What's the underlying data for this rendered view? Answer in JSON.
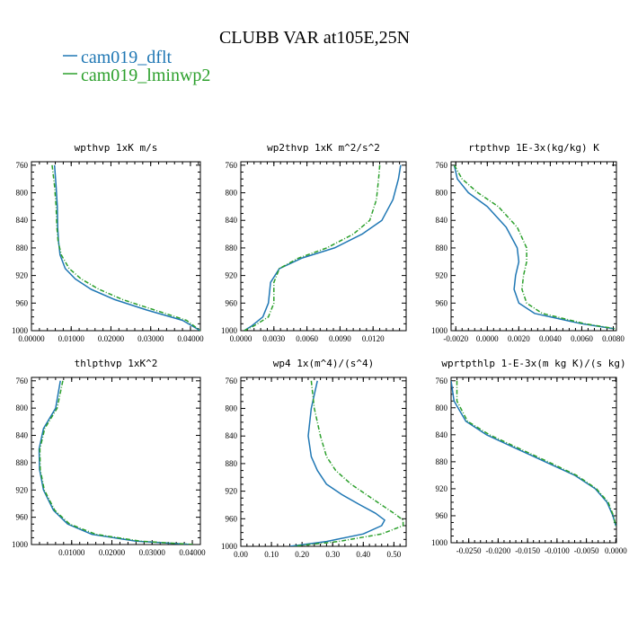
{
  "title": "CLUBB VAR at105E,25N",
  "legend": [
    {
      "label": "cam019_dflt",
      "color": "#1f77b4"
    },
    {
      "label": "cam019_lminwp2",
      "color": "#2ca02c"
    }
  ],
  "chart_data": [
    {
      "type": "line",
      "title": "wpthvp  1xK m/s",
      "ylabel": "",
      "xlabel": "",
      "y_axis_reversed": true,
      "ylim": [
        1000,
        755
      ],
      "xlim": [
        0,
        0.0425
      ],
      "yticks": [
        760,
        800,
        840,
        880,
        920,
        960,
        1000
      ],
      "xticks": [
        0,
        0.01,
        0.02,
        0.03,
        0.04
      ],
      "xtick_labels": [
        "0.00000",
        "0.01000",
        "0.02000",
        "0.03000",
        "0.04000"
      ],
      "series": [
        {
          "name": "cam019_dflt",
          "x": [
            0.0058,
            0.0062,
            0.0065,
            0.0066,
            0.0068,
            0.0072,
            0.0085,
            0.011,
            0.015,
            0.021,
            0.029,
            0.038,
            0.0425
          ],
          "y": [
            760,
            790,
            820,
            850,
            870,
            890,
            910,
            925,
            940,
            955,
            970,
            985,
            1000
          ]
        },
        {
          "name": "cam019_lminwp2",
          "x": [
            0.0052,
            0.0058,
            0.0062,
            0.0064,
            0.0067,
            0.0075,
            0.0095,
            0.0125,
            0.017,
            0.023,
            0.031,
            0.039,
            0.0425
          ],
          "y": [
            760,
            790,
            820,
            850,
            870,
            890,
            910,
            925,
            940,
            955,
            970,
            985,
            1000
          ]
        }
      ]
    },
    {
      "type": "line",
      "title": "wp2thvp  1xK m^2/s^2",
      "ylabel": "",
      "xlabel": "",
      "y_axis_reversed": true,
      "ylim": [
        1000,
        755
      ],
      "xlim": [
        0,
        0.015
      ],
      "yticks": [
        760,
        800,
        840,
        880,
        920,
        960,
        1000
      ],
      "xticks": [
        0,
        0.003,
        0.006,
        0.009,
        0.012
      ],
      "xtick_labels": [
        "0.0000",
        "0.0030",
        "0.0060",
        "0.0090",
        "0.0120"
      ],
      "series": [
        {
          "name": "cam019_dflt",
          "x": [
            0.0145,
            0.0143,
            0.0138,
            0.0128,
            0.011,
            0.0085,
            0.0055,
            0.0035,
            0.0027,
            0.0025,
            0.002,
            0.001,
            0.0003
          ],
          "y": [
            760,
            780,
            810,
            840,
            860,
            880,
            895,
            910,
            930,
            960,
            980,
            993,
            1000
          ]
        },
        {
          "name": "cam019_lminwp2",
          "x": [
            0.0126,
            0.0125,
            0.0123,
            0.0117,
            0.0102,
            0.0078,
            0.0052,
            0.0035,
            0.003,
            0.003,
            0.0025,
            0.0012,
            0.0003
          ],
          "y": [
            760,
            780,
            810,
            840,
            860,
            880,
            895,
            910,
            930,
            960,
            980,
            993,
            1000
          ]
        }
      ]
    },
    {
      "type": "line",
      "title": "rtpthvp  1E-3x(kg/kg) K",
      "ylabel": "",
      "xlabel": "",
      "y_axis_reversed": true,
      "ylim": [
        1000,
        755
      ],
      "xlim": [
        -0.0023,
        0.0082
      ],
      "yticks": [
        760,
        800,
        840,
        880,
        920,
        960,
        1000
      ],
      "xticks": [
        -0.002,
        0,
        0.002,
        0.004,
        0.006,
        0.008
      ],
      "xtick_labels": [
        "-0.0020",
        "0.0000",
        "0.0020",
        "0.0040",
        "0.0060",
        "0.0080"
      ],
      "series": [
        {
          "name": "cam019_dflt",
          "x": [
            -0.0021,
            -0.0019,
            -0.0012,
            0.0,
            0.0012,
            0.0019,
            0.002,
            0.0018,
            0.0017,
            0.002,
            0.003,
            0.006,
            0.008
          ],
          "y": [
            760,
            780,
            800,
            820,
            850,
            880,
            900,
            920,
            940,
            960,
            975,
            990,
            997
          ]
        },
        {
          "name": "cam019_lminwp2",
          "x": [
            -0.0021,
            -0.0016,
            -0.0006,
            0.0007,
            0.0019,
            0.0025,
            0.0025,
            0.0023,
            0.0022,
            0.0025,
            0.0035,
            0.0062,
            0.0081
          ],
          "y": [
            760,
            780,
            800,
            820,
            850,
            880,
            900,
            920,
            940,
            960,
            975,
            990,
            997
          ]
        }
      ]
    },
    {
      "type": "line",
      "title": "thlpthvp  1xK^2",
      "ylabel": "",
      "xlabel": "",
      "y_axis_reversed": true,
      "ylim": [
        1000,
        755
      ],
      "xlim": [
        0,
        0.042
      ],
      "yticks": [
        760,
        800,
        840,
        880,
        920,
        960,
        1000
      ],
      "xticks": [
        0.01,
        0.02,
        0.03,
        0.04
      ],
      "xtick_labels": [
        "0.01000",
        "0.02000",
        "0.03000",
        "0.04000"
      ],
      "series": [
        {
          "name": "cam019_dflt",
          "x": [
            0.0072,
            0.006,
            0.003,
            0.0019,
            0.002,
            0.003,
            0.0055,
            0.009,
            0.015,
            0.026,
            0.04
          ],
          "y": [
            760,
            800,
            830,
            860,
            890,
            920,
            950,
            970,
            985,
            995,
            1000
          ]
        },
        {
          "name": "cam019_lminwp2",
          "x": [
            0.0078,
            0.0064,
            0.0033,
            0.0021,
            0.0022,
            0.0032,
            0.0058,
            0.0095,
            0.016,
            0.027,
            0.0405
          ],
          "y": [
            760,
            800,
            830,
            860,
            890,
            920,
            950,
            970,
            985,
            995,
            1000
          ]
        }
      ]
    },
    {
      "type": "line",
      "title": "wp4  1x(m^4)/(s^4)",
      "ylabel": "",
      "xlabel": "",
      "y_axis_reversed": true,
      "ylim": [
        1000,
        755
      ],
      "xlim": [
        0,
        0.54
      ],
      "yticks": [
        760,
        800,
        840,
        880,
        920,
        960,
        1000
      ],
      "xticks": [
        0,
        0.1,
        0.2,
        0.3,
        0.4,
        0.5
      ],
      "xtick_labels": [
        "0.00",
        "0.10",
        "0.20",
        "0.30",
        "0.40",
        "0.50"
      ],
      "series": [
        {
          "name": "cam019_dflt",
          "x": [
            0.25,
            0.23,
            0.22,
            0.23,
            0.25,
            0.28,
            0.33,
            0.39,
            0.44,
            0.47,
            0.46,
            0.4,
            0.28,
            0.16
          ],
          "y": [
            760,
            800,
            840,
            870,
            890,
            910,
            925,
            940,
            952,
            962,
            970,
            982,
            993,
            1000
          ]
        },
        {
          "name": "cam019_lminwp2",
          "x": [
            0.23,
            0.24,
            0.26,
            0.28,
            0.31,
            0.36,
            0.41,
            0.46,
            0.5,
            0.53,
            0.53,
            0.46,
            0.32,
            0.17
          ],
          "y": [
            760,
            800,
            840,
            870,
            890,
            910,
            925,
            940,
            952,
            962,
            970,
            982,
            993,
            1000
          ]
        }
      ]
    },
    {
      "type": "line",
      "title": "wprtpthlp  1-E-3x(m kg K)/(s kg)",
      "ylabel": "",
      "xlabel": "",
      "y_axis_reversed": true,
      "ylim": [
        1000,
        755
      ],
      "xlim": [
        -0.028,
        0.0001
      ],
      "yticks": [
        760,
        800,
        840,
        880,
        920,
        960,
        1000
      ],
      "xticks": [
        -0.025,
        -0.02,
        -0.015,
        -0.01,
        -0.005,
        0
      ],
      "xtick_labels": [
        "-0.0250",
        "-0.0200",
        "-0.0150",
        "-0.0100",
        "-0.0050",
        "0.0000"
      ],
      "series": [
        {
          "name": "cam019_dflt",
          "x": [
            -0.028,
            -0.0275,
            -0.0255,
            -0.022,
            -0.017,
            -0.012,
            -0.007,
            -0.0035,
            -0.0015,
            -0.0005,
            0.0
          ],
          "y": [
            760,
            790,
            820,
            840,
            860,
            880,
            900,
            920,
            940,
            960,
            975
          ]
        },
        {
          "name": "cam019_lminwp2",
          "x": [
            -0.027,
            -0.027,
            -0.0252,
            -0.0215,
            -0.0165,
            -0.0115,
            -0.0067,
            -0.0033,
            -0.0013,
            -0.0004,
            0.0
          ],
          "y": [
            760,
            790,
            820,
            840,
            860,
            880,
            900,
            920,
            940,
            960,
            975
          ]
        }
      ]
    }
  ]
}
